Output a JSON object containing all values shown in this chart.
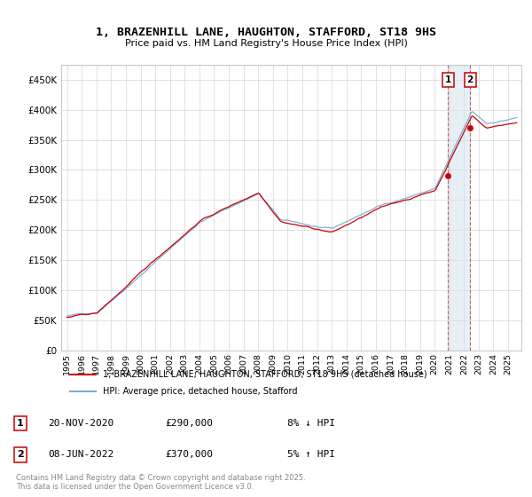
{
  "title": "1, BRAZENHILL LANE, HAUGHTON, STAFFORD, ST18 9HS",
  "subtitle": "Price paid vs. HM Land Registry's House Price Index (HPI)",
  "ylim": [
    0,
    475000
  ],
  "yticks": [
    0,
    50000,
    100000,
    150000,
    200000,
    250000,
    300000,
    350000,
    400000,
    450000
  ],
  "ytick_labels": [
    "£0",
    "£50K",
    "£100K",
    "£150K",
    "£200K",
    "£250K",
    "£300K",
    "£350K",
    "£400K",
    "£450K"
  ],
  "line1_color": "#cc0000",
  "line2_color": "#7aadd4",
  "legend1_label": "1, BRAZENHILL LANE, HAUGHTON, STAFFORD, ST18 9HS (detached house)",
  "legend2_label": "HPI: Average price, detached house, Stafford",
  "annotation1_date": "20-NOV-2020",
  "annotation1_price": "£290,000",
  "annotation1_hpi": "8% ↓ HPI",
  "annotation2_date": "08-JUN-2022",
  "annotation2_price": "£370,000",
  "annotation2_hpi": "5% ↑ HPI",
  "footer": "Contains HM Land Registry data © Crown copyright and database right 2025.\nThis data is licensed under the Open Government Licence v3.0.",
  "background_color": "#ffffff",
  "grid_color": "#dddddd",
  "purchase1_year": 2020.88,
  "purchase1_price": 290000,
  "purchase2_year": 2022.44,
  "purchase2_price": 370000
}
